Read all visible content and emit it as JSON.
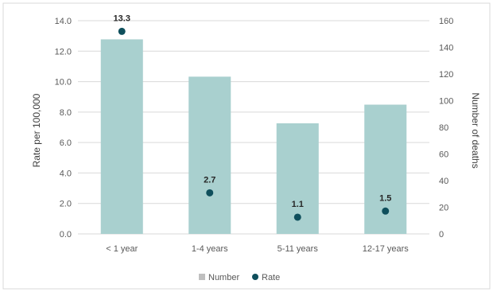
{
  "chart_data": {
    "type": "bar",
    "categories": [
      "< 1 year",
      "1-4 years",
      "5-11 years",
      "12-17 years"
    ],
    "series": [
      {
        "name": "Number",
        "type": "bar",
        "axis": "right",
        "values": [
          146,
          118,
          83,
          97
        ],
        "color": "#a9d0cf"
      },
      {
        "name": "Rate",
        "type": "scatter",
        "axis": "left",
        "values": [
          13.3,
          2.7,
          1.1,
          1.5
        ],
        "labels": [
          "13.3",
          "2.7",
          "1.1",
          "1.5"
        ],
        "color": "#0f4f5c"
      }
    ],
    "ylabel": "Rate per 100,000",
    "y2label": "Number of deaths",
    "ylim": [
      0,
      14
    ],
    "y2lim": [
      0,
      160
    ],
    "yticks": [
      "0.0",
      "2.0",
      "4.0",
      "6.0",
      "8.0",
      "10.0",
      "12.0",
      "14.0"
    ],
    "y2ticks": [
      "0",
      "20",
      "40",
      "60",
      "80",
      "100",
      "120",
      "140",
      "160"
    ],
    "grid": true,
    "legend_position": "bottom"
  }
}
